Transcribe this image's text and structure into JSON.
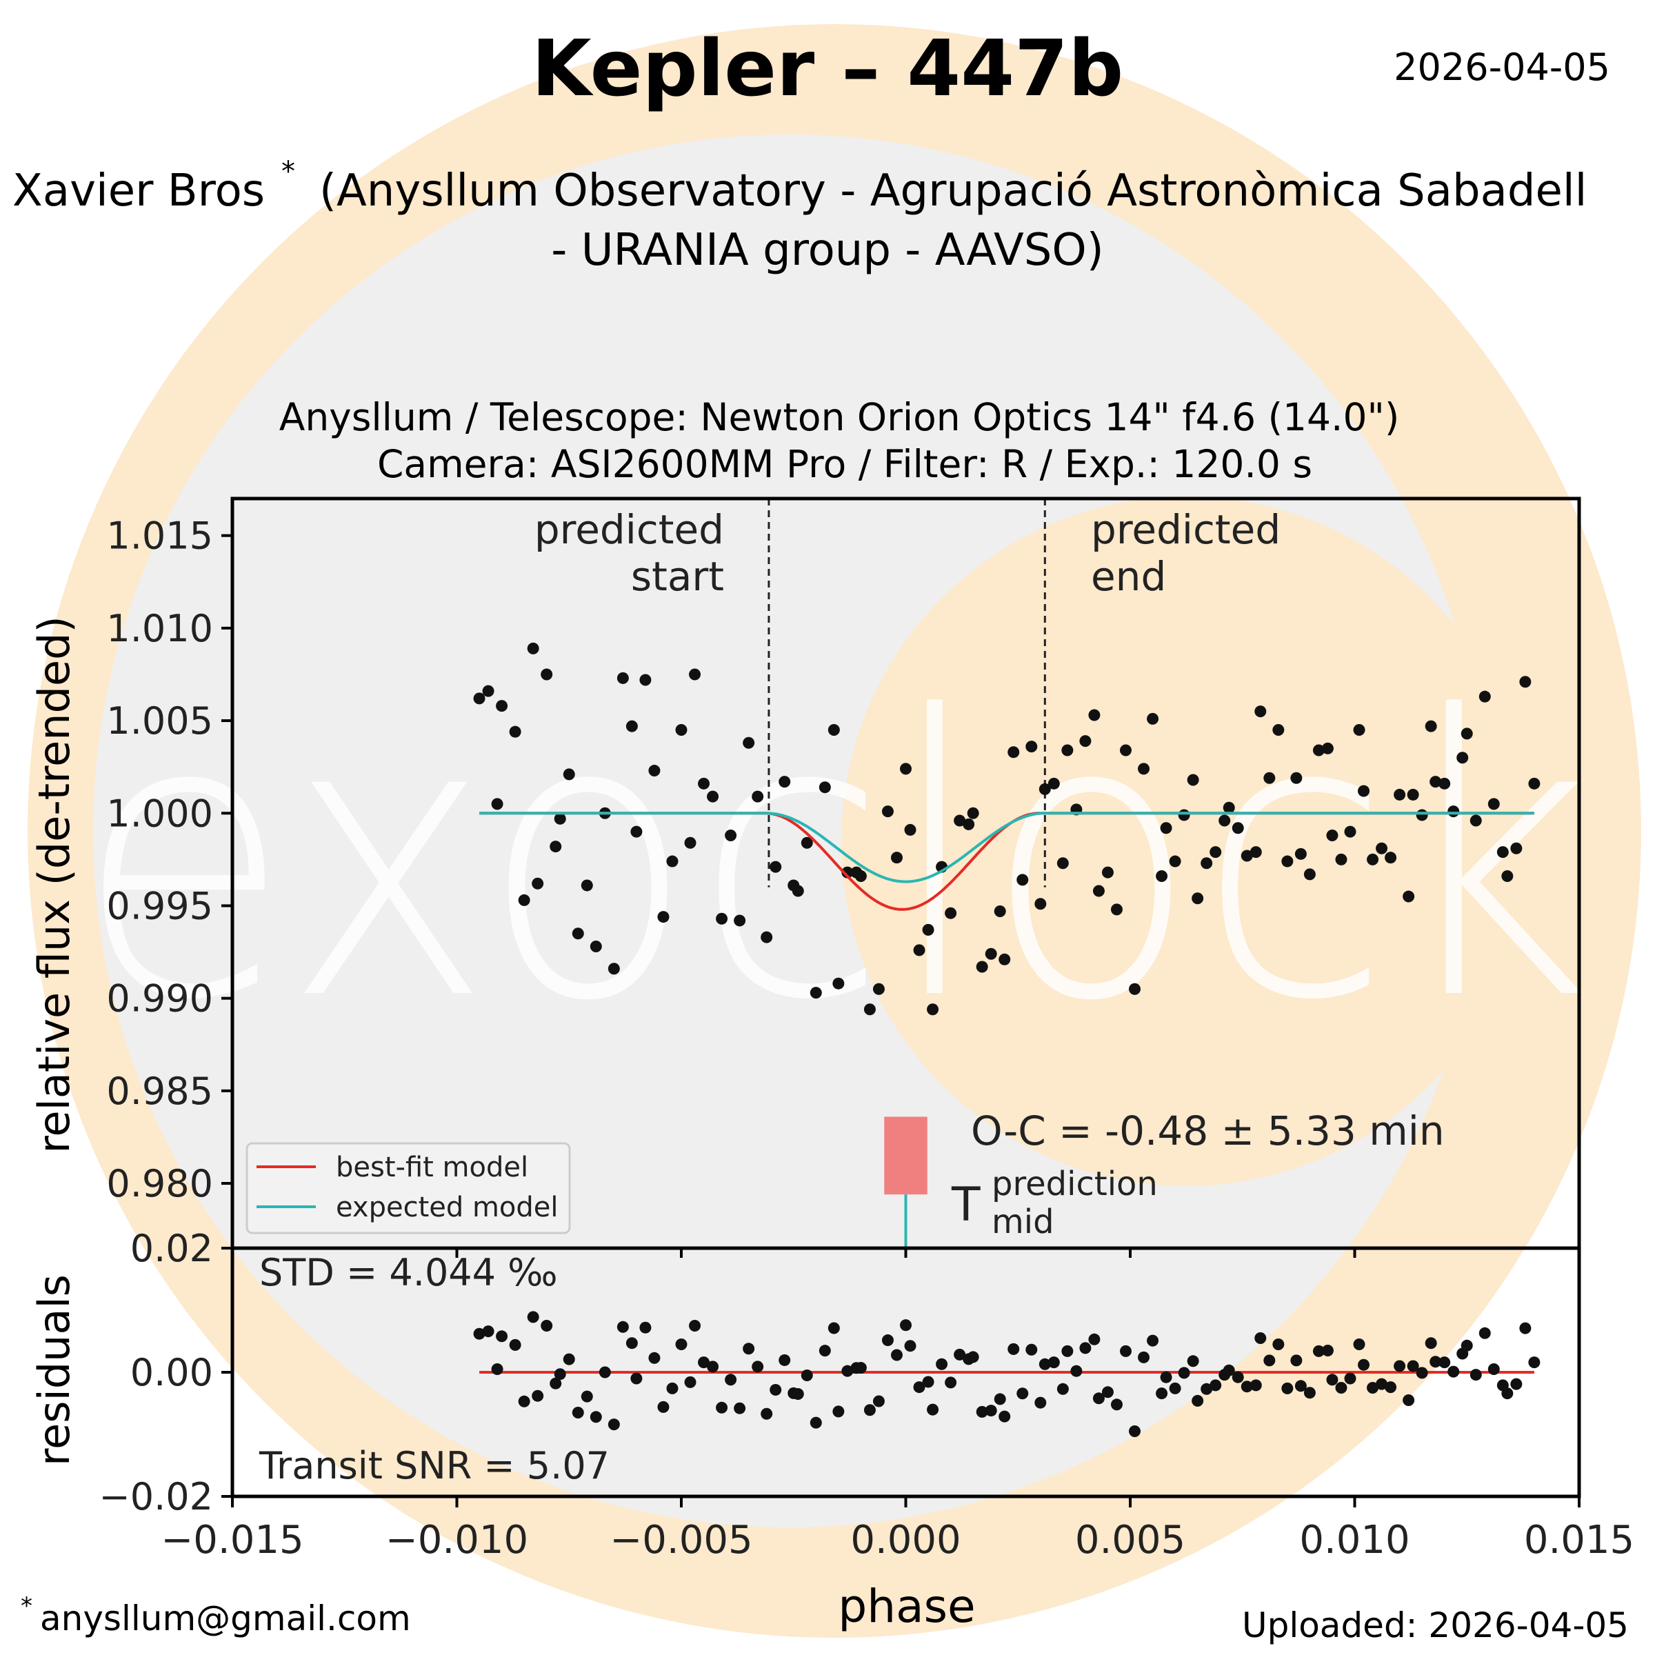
{
  "header": {
    "title": "Kepler – 447b",
    "date": "2026-04-05",
    "observer_name": "Xavier Bros",
    "observer_mark": "*",
    "affiliation_line1": "(Anysllum Observatory - Agrupació Astronòmica Sabadell",
    "affiliation_line2": "- URANIA group - AAVSO)",
    "equipment_line1": "Anysllum / Telescope: Newton Orion Optics 14\" f4.6 (14.0\")",
    "equipment_line2": "Camera: ASI2600MM Pro / Filter: R / Exp.: 120.0 s"
  },
  "footer": {
    "contact_mark": "*",
    "contact_email": "anysllum@gmail.com",
    "uploaded": "Uploaded: 2026-04-05"
  },
  "watermark": {
    "text": "exoclock",
    "colors": {
      "outer": "#fde9cc",
      "inner": "#efefef",
      "letters": "#ffffff"
    }
  },
  "colors": {
    "best_fit": "#e32c25",
    "expected": "#2ab6b3",
    "points": "#111111",
    "prediction_box": "#f08080",
    "guide": "#222222"
  },
  "chart_data": [
    {
      "type": "scatter",
      "xlabel": "phase",
      "ylabel": "relative flux (de-trended)",
      "xlim": [
        -0.015,
        0.015
      ],
      "ylim": [
        0.9765,
        1.017
      ],
      "xticks": [
        "−0.015",
        "−0.010",
        "−0.005",
        "0.000",
        "0.005",
        "0.010",
        "0.015"
      ],
      "xtick_values": [
        -0.015,
        -0.01,
        -0.005,
        0.0,
        0.005,
        0.01,
        0.015
      ],
      "yticks": [
        "1.015",
        "1.010",
        "1.005",
        "1.000",
        "0.995",
        "0.990",
        "0.985",
        "0.980"
      ],
      "ytick_values": [
        1.015,
        1.01,
        1.005,
        1.0,
        0.995,
        0.99,
        0.985,
        0.98
      ],
      "legend": {
        "placement": "lower-left",
        "entries": [
          {
            "label": "best-fit model",
            "color": "#e32c25"
          },
          {
            "label": "expected model",
            "color": "#2ab6b3"
          }
        ]
      },
      "annotations": {
        "predicted_start": {
          "x": -0.00305,
          "line1": "predicted",
          "line2": "start"
        },
        "predicted_end": {
          "x": 0.0031,
          "line1": "predicted",
          "line2": "end"
        },
        "oc_text": "O-C = -0.48 ± 5.33 min",
        "tmid_T": "T",
        "tmid_super": "prediction",
        "tmid_sub": "mid",
        "prediction_box": {
          "x_center": 0.0,
          "half_width": 0.00048,
          "y_low": 0.9794,
          "y_high": 0.9836
        }
      },
      "models": {
        "x_range": [
          -0.0095,
          0.014
        ],
        "best_fit": {
          "t0": -8e-05,
          "half_duration": 0.00305,
          "depth": 0.0052
        },
        "expected": {
          "t0": 0.0,
          "half_duration": 0.0031,
          "depth": 0.0037
        }
      },
      "series": [
        {
          "name": "data",
          "points": [
            [
              -0.0095,
              1.0062
            ],
            [
              -0.0093,
              1.0066
            ],
            [
              -0.0091,
              1.0005
            ],
            [
              -0.009,
              1.0058
            ],
            [
              -0.0087,
              1.0044
            ],
            [
              -0.0085,
              0.9953
            ],
            [
              -0.0083,
              1.0089
            ],
            [
              -0.0082,
              0.9962
            ],
            [
              -0.008,
              1.0075
            ],
            [
              -0.0078,
              0.9982
            ],
            [
              -0.0077,
              0.9997
            ],
            [
              -0.0075,
              1.0021
            ],
            [
              -0.0073,
              0.9935
            ],
            [
              -0.0071,
              0.9961
            ],
            [
              -0.0069,
              0.9928
            ],
            [
              -0.0067,
              1.0
            ],
            [
              -0.0065,
              0.9916
            ],
            [
              -0.0063,
              1.0073
            ],
            [
              -0.0061,
              1.0047
            ],
            [
              -0.006,
              0.999
            ],
            [
              -0.0058,
              1.0072
            ],
            [
              -0.0056,
              1.0023
            ],
            [
              -0.0054,
              0.9944
            ],
            [
              -0.0052,
              0.9974
            ],
            [
              -0.005,
              1.0045
            ],
            [
              -0.0048,
              0.9984
            ],
            [
              -0.0047,
              1.0075
            ],
            [
              -0.0045,
              1.0016
            ],
            [
              -0.0043,
              1.0009
            ],
            [
              -0.0041,
              0.9943
            ],
            [
              -0.0039,
              0.9988
            ],
            [
              -0.0037,
              0.9942
            ],
            [
              -0.0035,
              1.0038
            ],
            [
              -0.0033,
              1.0009
            ],
            [
              -0.0031,
              0.9933
            ],
            [
              -0.0029,
              0.9971
            ],
            [
              -0.0027,
              1.0017
            ],
            [
              -0.0025,
              0.9961
            ],
            [
              -0.0024,
              0.9958
            ],
            [
              -0.0022,
              0.9984
            ],
            [
              -0.002,
              0.9903
            ],
            [
              -0.0018,
              1.0014
            ],
            [
              -0.0016,
              1.0045
            ],
            [
              -0.0015,
              0.9908
            ],
            [
              -0.0013,
              0.9968
            ],
            [
              -0.0011,
              0.9968
            ],
            [
              -0.001,
              0.9966
            ],
            [
              -0.0008,
              0.9894
            ],
            [
              -0.0006,
              0.9905
            ],
            [
              -0.0004,
              1.0001
            ],
            [
              -0.0002,
              0.9976
            ],
            [
              -0.0,
              1.0024
            ],
            [
              0.0001,
              0.9991
            ],
            [
              0.0003,
              0.9926
            ],
            [
              0.0005,
              0.9937
            ],
            [
              0.0006,
              0.9894
            ],
            [
              0.0008,
              0.9971
            ],
            [
              0.001,
              0.9946
            ],
            [
              0.0012,
              0.9996
            ],
            [
              0.0014,
              0.9994
            ],
            [
              0.0015,
              1.0
            ],
            [
              0.0017,
              0.9917
            ],
            [
              0.0019,
              0.9924
            ],
            [
              0.0021,
              0.9947
            ],
            [
              0.0022,
              0.9921
            ],
            [
              0.0024,
              1.0033
            ],
            [
              0.0026,
              0.9964
            ],
            [
              0.0028,
              1.0036
            ],
            [
              0.003,
              0.9951
            ],
            [
              0.0031,
              1.0013
            ],
            [
              0.0033,
              1.0016
            ],
            [
              0.0035,
              0.9973
            ],
            [
              0.0036,
              1.0034
            ],
            [
              0.0038,
              1.0002
            ],
            [
              0.004,
              1.0039
            ],
            [
              0.0042,
              1.0053
            ],
            [
              0.0043,
              0.9958
            ],
            [
              0.0045,
              0.9968
            ],
            [
              0.0047,
              0.9948
            ],
            [
              0.0049,
              1.0034
            ],
            [
              0.0051,
              0.9905
            ],
            [
              0.0053,
              1.0024
            ],
            [
              0.0055,
              1.0051
            ],
            [
              0.0057,
              0.9966
            ],
            [
              0.0058,
              0.9992
            ],
            [
              0.006,
              0.9974
            ],
            [
              0.0062,
              0.9999
            ],
            [
              0.0064,
              1.0018
            ],
            [
              0.0065,
              0.9954
            ],
            [
              0.0067,
              0.9973
            ],
            [
              0.0069,
              0.9979
            ],
            [
              0.0071,
              0.9996
            ],
            [
              0.0072,
              1.0003
            ],
            [
              0.0074,
              0.9992
            ],
            [
              0.0076,
              0.9977
            ],
            [
              0.0078,
              0.9979
            ],
            [
              0.0079,
              1.0055
            ],
            [
              0.0081,
              1.0019
            ],
            [
              0.0083,
              1.0045
            ],
            [
              0.0085,
              0.9974
            ],
            [
              0.0087,
              1.0019
            ],
            [
              0.0088,
              0.9978
            ],
            [
              0.009,
              0.9967
            ],
            [
              0.0092,
              1.0034
            ],
            [
              0.0094,
              1.0035
            ],
            [
              0.0095,
              0.9988
            ],
            [
              0.0097,
              0.9975
            ],
            [
              0.0099,
              0.999
            ],
            [
              0.0101,
              1.0045
            ],
            [
              0.0102,
              1.0012
            ],
            [
              0.0104,
              0.9975
            ],
            [
              0.0106,
              0.9981
            ],
            [
              0.0108,
              0.9976
            ],
            [
              0.011,
              1.001
            ],
            [
              0.0112,
              0.9955
            ],
            [
              0.0113,
              1.001
            ],
            [
              0.0115,
              0.9999
            ],
            [
              0.0117,
              1.0047
            ],
            [
              0.0118,
              1.0017
            ],
            [
              0.012,
              1.0016
            ],
            [
              0.0122,
              1.0001
            ],
            [
              0.0124,
              1.003
            ],
            [
              0.0125,
              1.0043
            ],
            [
              0.0127,
              0.9996
            ],
            [
              0.0129,
              1.0063
            ],
            [
              0.0131,
              1.0005
            ],
            [
              0.0133,
              0.9979
            ],
            [
              0.0134,
              0.9966
            ],
            [
              0.0136,
              0.9981
            ],
            [
              0.0138,
              1.0071
            ],
            [
              0.014,
              1.0016
            ]
          ]
        }
      ]
    },
    {
      "type": "scatter",
      "xlabel": "phase",
      "ylabel": "residuals",
      "xlim": [
        -0.015,
        0.015
      ],
      "ylim": [
        -0.02,
        0.02
      ],
      "yticks": [
        "0.02",
        "0.00",
        "−0.02"
      ],
      "ytick_values": [
        0.02,
        0.0,
        -0.02
      ],
      "annotations": {
        "std_text": "STD = 4.044 ‰",
        "snr_text": "Transit SNR = 5.07"
      },
      "model_line": {
        "value": 0.0,
        "color": "#e32c25",
        "x_range": [
          -0.0095,
          0.014
        ]
      }
    }
  ]
}
